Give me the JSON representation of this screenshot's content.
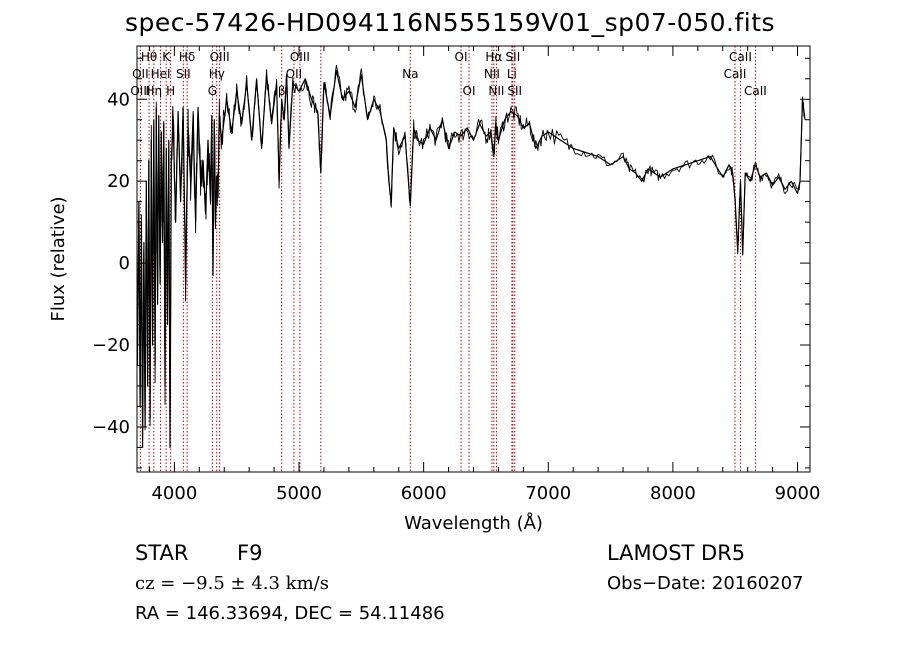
{
  "title": "spec-57426-HD094116N555159V01_sp07-050.fits",
  "chart_data": {
    "type": "line",
    "title": "spec-57426-HD094116N555159V01_sp07-050.fits",
    "xlabel": "Wavelength (Å)",
    "ylabel": "Flux (relative)",
    "xlim": [
      3700,
      9100
    ],
    "ylim": [
      -51,
      53
    ],
    "xticks": [
      4000,
      5000,
      6000,
      7000,
      8000,
      9000
    ],
    "yticks": [
      -40,
      -20,
      0,
      20,
      40
    ],
    "grid": false,
    "series": [
      {
        "x": [
          3705,
          3715,
          3725,
          3735,
          3745,
          3755,
          3765,
          3775,
          3785,
          3795,
          3805,
          3815,
          3825,
          3835,
          3845,
          3855,
          3865,
          3875,
          3885,
          3895,
          3905,
          3915,
          3925,
          3935,
          3945,
          3955,
          3965,
          3975,
          3990,
          4010,
          4030,
          4050,
          4070,
          4090,
          4110,
          4130,
          4150,
          4170,
          4190,
          4210,
          4230,
          4250,
          4270,
          4290,
          4300,
          4310,
          4320,
          4330,
          4340,
          4350,
          4360,
          4380,
          4420,
          4460,
          4500,
          4540,
          4580,
          4620,
          4660,
          4700,
          4740,
          4780,
          4820,
          4840,
          4861,
          4880,
          4900,
          4920,
          4950,
          5000,
          5050,
          5100,
          5150,
          5175,
          5200,
          5250,
          5300,
          5350,
          5400,
          5450,
          5500,
          5550,
          5600,
          5650,
          5700,
          5720,
          5740,
          5760,
          5800,
          5850,
          5893,
          5920,
          5950,
          6000,
          6050,
          6100,
          6150,
          6200,
          6250,
          6300,
          6350,
          6400,
          6450,
          6500,
          6540,
          6563,
          6580,
          6600,
          6650,
          6700,
          6750,
          6800,
          6850,
          6900,
          6950,
          7000,
          7100,
          7200,
          7300,
          7400,
          7500,
          7600,
          7650,
          7700,
          7750,
          7800,
          7850,
          7900,
          8000,
          8100,
          8200,
          8300,
          8400,
          8450,
          8480,
          8500,
          8520,
          8542,
          8560,
          8580,
          8620,
          8662,
          8700,
          8750,
          8800,
          8850,
          8900,
          8950,
          9000,
          9020,
          9040,
          9060
        ],
        "values": [
          -20,
          15,
          -35,
          10,
          -45,
          5,
          -40,
          20,
          -30,
          25,
          -38,
          30,
          -20,
          35,
          -25,
          38,
          -10,
          36,
          -5,
          32,
          5,
          34,
          -30,
          28,
          -15,
          30,
          -45,
          25,
          35,
          10,
          37,
          15,
          38,
          -5,
          33,
          20,
          36,
          10,
          38,
          20,
          25,
          12,
          30,
          15,
          36,
          -3,
          35,
          10,
          20,
          16,
          36,
          30,
          40,
          32,
          42,
          34,
          44,
          30,
          45,
          28,
          46,
          34,
          44,
          20,
          40,
          35,
          46,
          28,
          44,
          42,
          45,
          40,
          37,
          22,
          44,
          36,
          47,
          40,
          42,
          38,
          46,
          35,
          40,
          37,
          30,
          20,
          15,
          33,
          28,
          31,
          14,
          33,
          30,
          29,
          33,
          30,
          35,
          28,
          32,
          31,
          33,
          30,
          34,
          31,
          32,
          26,
          34,
          30,
          35,
          37,
          36,
          33,
          34,
          28,
          31,
          32,
          30,
          28,
          27,
          26,
          24,
          26,
          23,
          22,
          20,
          23,
          22,
          21,
          23,
          24,
          25,
          26,
          21,
          24,
          22,
          15,
          3,
          20,
          2,
          22,
          20,
          24,
          21,
          22,
          19,
          21,
          18,
          20,
          17,
          20,
          40,
          35
        ]
      }
    ],
    "line_labels": [
      {
        "text": "Hθ",
        "x": 3797
      },
      {
        "text": "K",
        "x": 3934
      },
      {
        "text": "Hδ",
        "x": 4102
      },
      {
        "text": "OIII",
        "x": 4363
      },
      {
        "text": "OIII",
        "x": 5007
      },
      {
        "text": "OI",
        "x": 6300
      },
      {
        "text": "Hα",
        "x": 6563
      },
      {
        "text": "SII",
        "x": 6716
      },
      {
        "text": "CaII",
        "x": 8542
      },
      {
        "text": "OII",
        "x": 3727
      },
      {
        "text": "HeI",
        "x": 3889
      },
      {
        "text": "SII",
        "x": 4072
      },
      {
        "text": "Hγ",
        "x": 4340
      },
      {
        "text": "OII",
        "x": 4959
      },
      {
        "text": "Na",
        "x": 5893
      },
      {
        "text": "NII",
        "x": 6548
      },
      {
        "text": "Li",
        "x": 6708
      },
      {
        "text": "CaII",
        "x": 8498
      },
      {
        "text": "OIII",
        "x": 3727
      },
      {
        "text": "Hη",
        "x": 3835
      },
      {
        "text": "H",
        "x": 3970
      },
      {
        "text": "G",
        "x": 4305
      },
      {
        "text": "β",
        "x": 4861
      },
      {
        "text": "OI",
        "x": 6364
      },
      {
        "text": "NII",
        "x": 6584
      },
      {
        "text": "SII",
        "x": 6731
      },
      {
        "text": "CaII",
        "x": 8662
      }
    ],
    "line_positions": [
      3727,
      3797,
      3835,
      3889,
      3934,
      3970,
      4072,
      4102,
      4305,
      4340,
      4363,
      4861,
      4959,
      5007,
      5175,
      5893,
      6300,
      6364,
      6548,
      6563,
      6584,
      6708,
      6716,
      6731,
      8498,
      8542,
      8662
    ]
  },
  "info": {
    "class_label": "STAR",
    "subclass": "F9",
    "survey": "LAMOST DR5",
    "cz": "cz = −9.5 ± 4.3 km/s",
    "obs_date": "Obs−Date: 20160207",
    "radec": "RA = 146.33694, DEC =  54.11486"
  }
}
